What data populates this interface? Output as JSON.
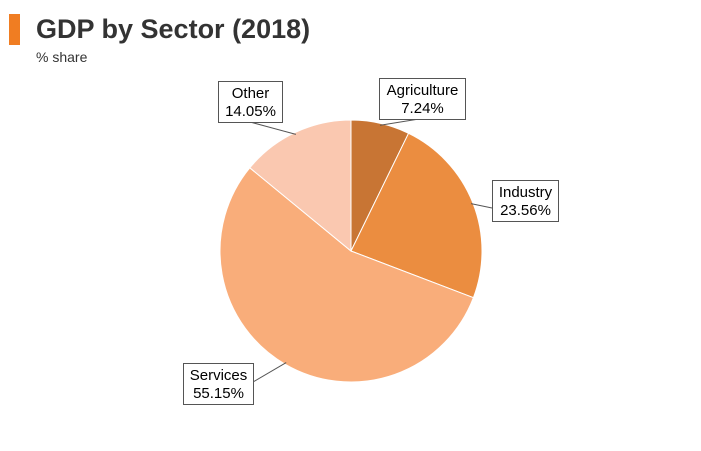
{
  "chart_data": {
    "type": "pie",
    "title": "GDP by Sector (2018)",
    "subtitle": "% share",
    "slices": [
      {
        "name": "Agriculture",
        "value": 7.24,
        "label": "7.24%",
        "color": "#c87534"
      },
      {
        "name": "Industry",
        "value": 23.56,
        "label": "23.56%",
        "color": "#eb8d40"
      },
      {
        "name": "Services",
        "value": 55.15,
        "label": "55.15%",
        "color": "#f9ad7a"
      },
      {
        "name": "Other",
        "value": 14.05,
        "label": "14.05%",
        "color": "#fac8b0"
      }
    ],
    "accent_color": "#f07d22"
  }
}
